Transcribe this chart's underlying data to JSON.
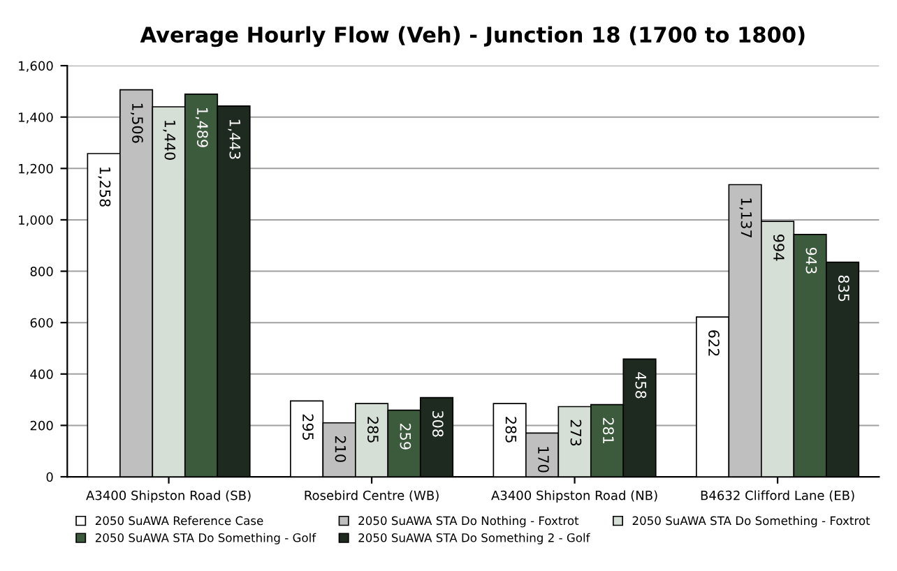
{
  "chart_data": {
    "type": "bar",
    "title": "Average Hourly Flow (Veh) - Junction 18 (1700 to 1800)",
    "categories": [
      "A3400 Shipston Road (SB)",
      "Rosebird Centre (WB)",
      "A3400 Shipston Road (NB)",
      "B4632 Clifford Lane (EB)"
    ],
    "series": [
      {
        "name": "2050 SuAWA Reference Case",
        "color": "#ffffff",
        "values": [
          1258,
          295,
          285,
          622
        ],
        "value_labels": [
          "1,258",
          "295",
          "285",
          "622"
        ]
      },
      {
        "name": "2050 SuAWA STA Do Nothing - Foxtrot",
        "color": "#bfbfbf",
        "values": [
          1506,
          210,
          170,
          1137
        ],
        "value_labels": [
          "1,506",
          "210",
          "170",
          "1,137"
        ]
      },
      {
        "name": "2050 SuAWA STA Do Something - Foxtrot",
        "color": "#d5dfd5",
        "values": [
          1440,
          285,
          273,
          994
        ],
        "value_labels": [
          "1,440",
          "285",
          "273",
          "994"
        ]
      },
      {
        "name": "2050 SuAWA STA Do Something - Golf",
        "color": "#3c5a3c",
        "values": [
          1489,
          259,
          281,
          943
        ],
        "value_labels": [
          "1,489",
          "259",
          "281",
          "943"
        ]
      },
      {
        "name": "2050 SuAWA STA Do Something 2 - Golf",
        "color": "#1e2a1f",
        "values": [
          1443,
          308,
          458,
          835
        ],
        "value_labels": [
          "1,443",
          "308",
          "458",
          "835"
        ]
      }
    ],
    "ylim": [
      0,
      1600
    ],
    "yticks": [
      0,
      200,
      400,
      600,
      800,
      {
        "value": 1000,
        "label": "1,000"
      },
      {
        "value": 1200,
        "label": "1,200"
      },
      {
        "value": 1400,
        "label": "1,400"
      },
      {
        "value": 1600,
        "label": "1,600"
      }
    ],
    "grid": "y",
    "legend": "bottom"
  }
}
